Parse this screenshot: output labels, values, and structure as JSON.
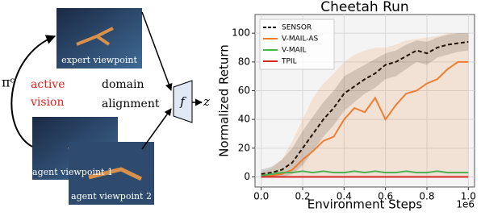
{
  "diagram": {
    "expert_label": "expert viewpoint",
    "agent1_label": "agent viewpoint 1",
    "agent2_label": "agent viewpoint 2",
    "policy": "πᶜ",
    "active": "active",
    "vision": "vision",
    "domain": "domain",
    "alignment": "alignment",
    "f": "f",
    "z": "z"
  },
  "chart_data": {
    "type": "line",
    "title": "Cheetah Run",
    "xlabel": "Environment Steps",
    "ylabel": "Normalized Return",
    "x_offset_label": "1e6",
    "x": [
      0,
      0.05,
      0.1,
      0.15,
      0.2,
      0.25,
      0.3,
      0.35,
      0.4,
      0.45,
      0.5,
      0.55,
      0.6,
      0.65,
      0.7,
      0.75,
      0.8,
      0.85,
      0.9,
      0.95,
      1.0
    ],
    "xlim": [
      -0.03,
      1.03
    ],
    "ylim": [
      -7,
      113
    ],
    "xticks": [
      {
        "value": 0,
        "label": "0.0"
      },
      0.2,
      0.4,
      0.6,
      0.8,
      {
        "value": 1,
        "label": "1.0"
      }
    ],
    "yticks": [
      0,
      20,
      40,
      60,
      80,
      100
    ],
    "grid": true,
    "legend": "upper left",
    "series": [
      {
        "name": "SENSOR",
        "color": "#000000",
        "dashed": true,
        "values": [
          2,
          3,
          5,
          10,
          20,
          30,
          40,
          48,
          58,
          63,
          68,
          72,
          78,
          80,
          84,
          88,
          86,
          90,
          92,
          93,
          94
        ],
        "band_lower": [
          0,
          0,
          0,
          2,
          8,
          18,
          28,
          36,
          46,
          52,
          58,
          62,
          68,
          70,
          75,
          80,
          78,
          83,
          85,
          87,
          88
        ],
        "band_upper": [
          5,
          7,
          12,
          20,
          32,
          42,
          52,
          60,
          70,
          74,
          78,
          82,
          86,
          88,
          92,
          95,
          94,
          97,
          99,
          100,
          100
        ]
      },
      {
        "name": "V-MAIL-AS",
        "color": "#ed7d31",
        "values": [
          0,
          1,
          2,
          5,
          12,
          18,
          25,
          28,
          40,
          48,
          45,
          55,
          40,
          50,
          58,
          60,
          65,
          68,
          75,
          80,
          80
        ],
        "band_lower": [
          0,
          0,
          0,
          0,
          0,
          0,
          0,
          0,
          0,
          0,
          0,
          0,
          0,
          0,
          0,
          0,
          0,
          0,
          0,
          0,
          0
        ],
        "band_upper": [
          3,
          6,
          12,
          25,
          40,
          55,
          65,
          72,
          80,
          85,
          88,
          90,
          90,
          92,
          95,
          96,
          97,
          98,
          100,
          100,
          100
        ]
      },
      {
        "name": "V-MAIL",
        "color": "#4caf50",
        "values": [
          1,
          2,
          3,
          3,
          4,
          3,
          4,
          3,
          3,
          4,
          3,
          4,
          3,
          3,
          4,
          3,
          3,
          4,
          3,
          3,
          3
        ]
      },
      {
        "name": "TPIL",
        "color": "#d62728",
        "values": [
          0,
          0,
          0,
          0,
          0,
          0,
          0,
          0,
          0,
          0,
          0,
          0,
          0,
          0,
          0,
          0,
          0,
          0,
          0,
          0,
          0
        ]
      }
    ]
  }
}
